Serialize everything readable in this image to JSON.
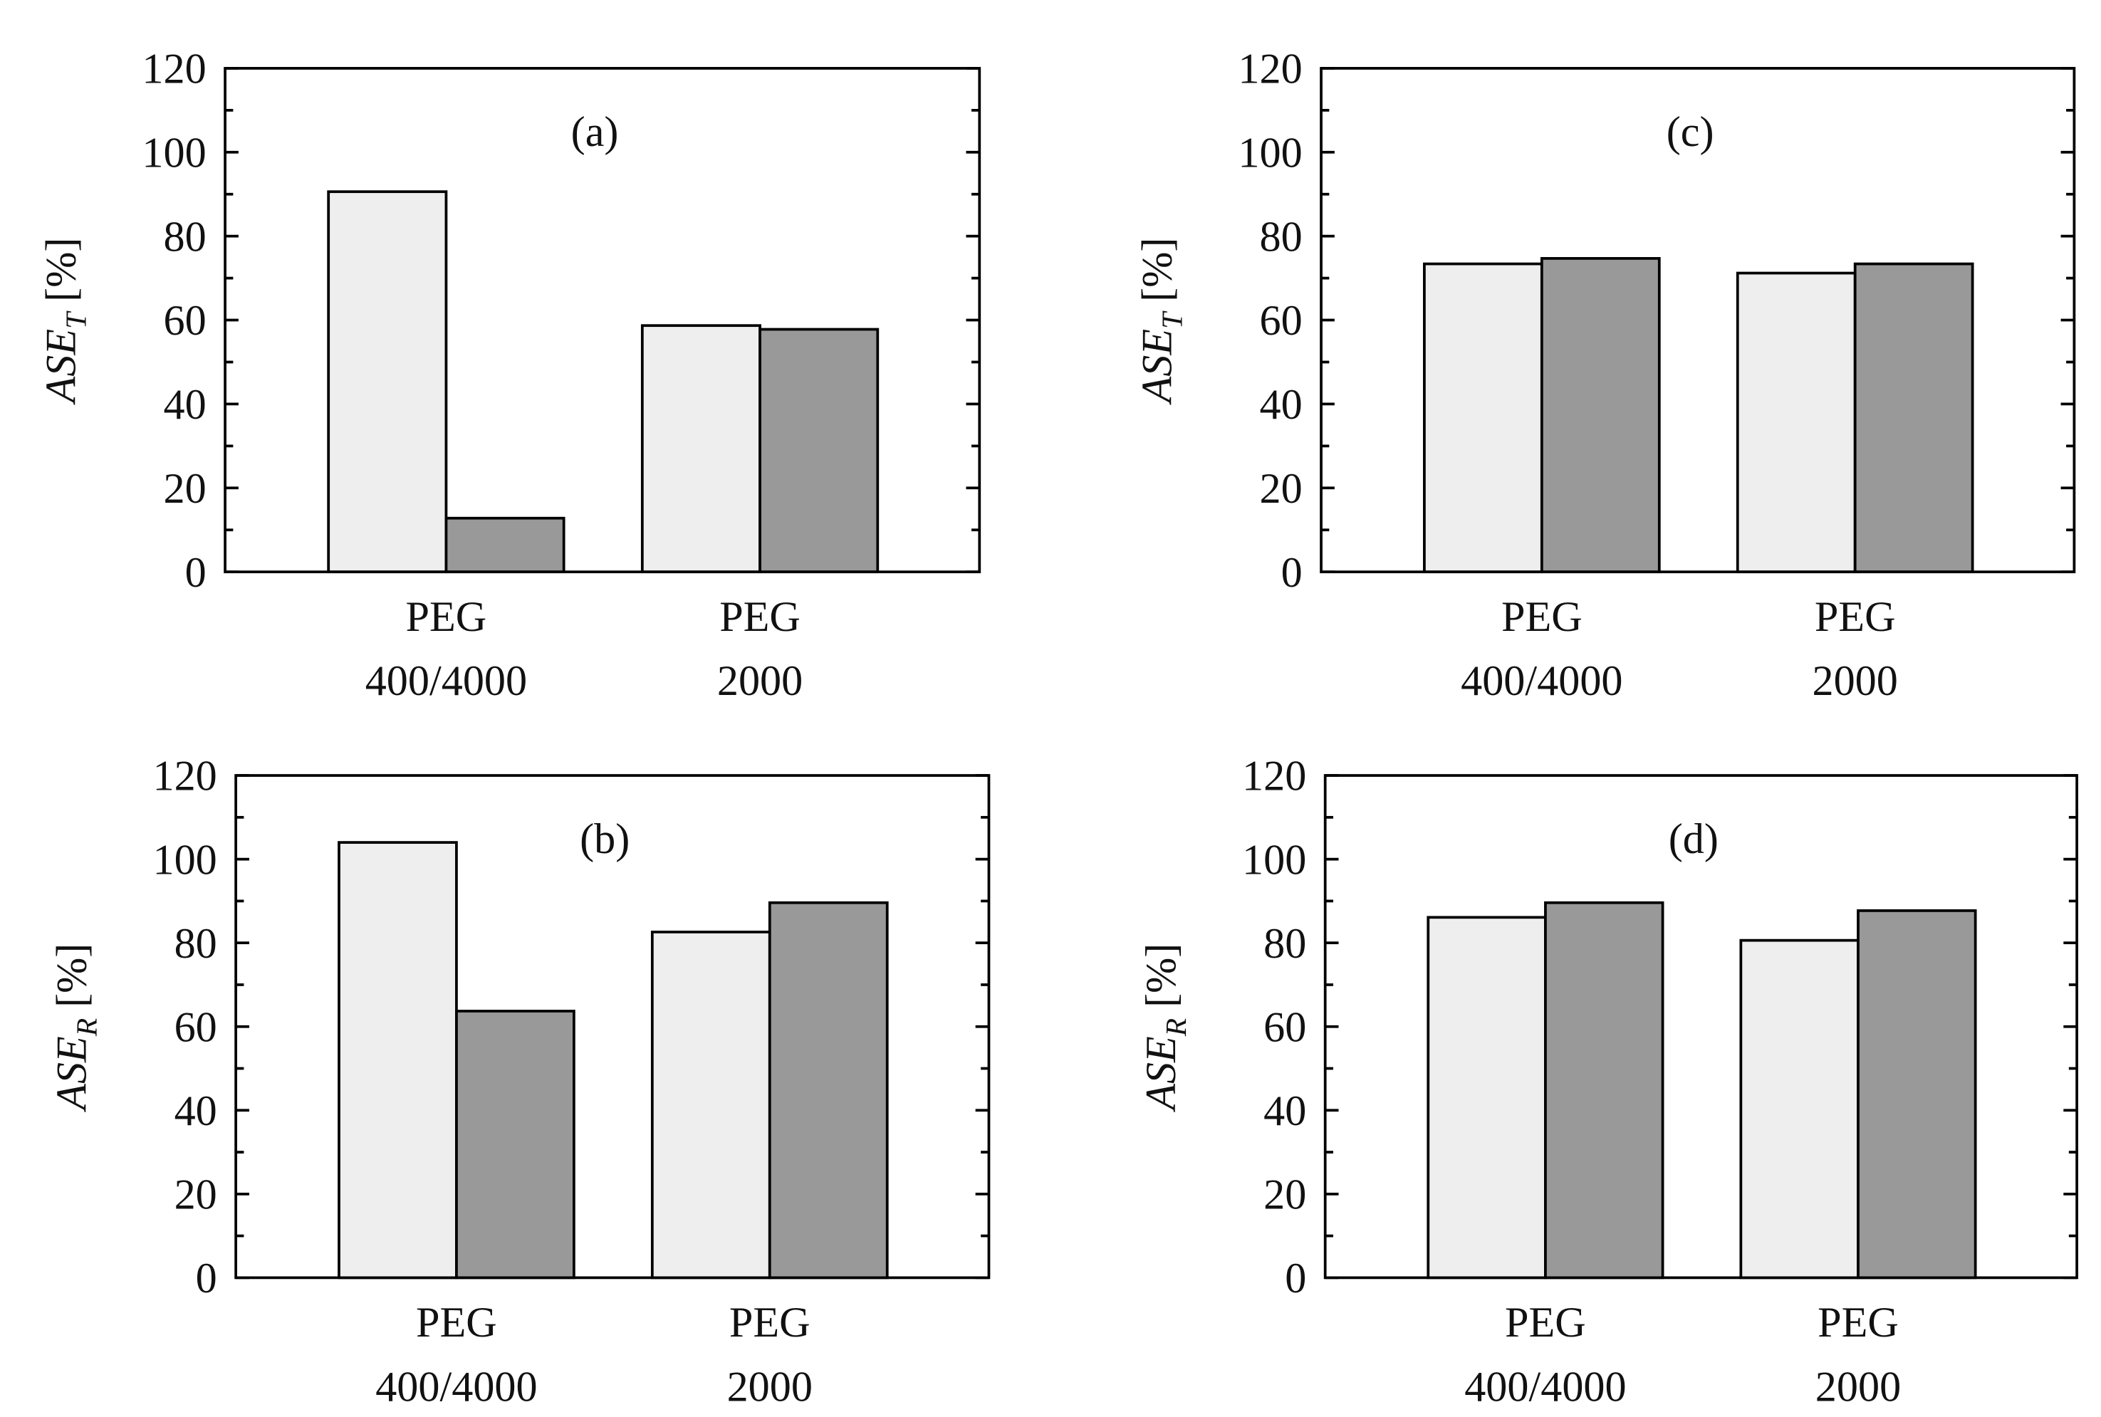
{
  "chart_data": [
    {
      "type": "bar",
      "title": "(a)",
      "ylabel": {
        "main": "ASE",
        "sub": "T",
        "unit": "[%]"
      },
      "categories": [
        [
          "PEG",
          "400/4000"
        ],
        [
          "PEG",
          "2000"
        ]
      ],
      "series": [
        {
          "color": "#eeeeee",
          "values": [
            90.6,
            58.7
          ]
        },
        {
          "color": "#999999",
          "values": [
            12.8,
            57.8
          ]
        }
      ],
      "ylim": [
        0,
        120
      ],
      "yticks": [
        0,
        20,
        40,
        60,
        80,
        100,
        120
      ],
      "yminor": [
        10,
        30,
        50,
        70,
        90,
        110
      ]
    },
    {
      "type": "bar",
      "title": "(b)",
      "ylabel": {
        "main": "ASE",
        "sub": "R",
        "unit": "[%]"
      },
      "categories": [
        [
          "PEG",
          "400/4000"
        ],
        [
          "PEG",
          "2000"
        ]
      ],
      "series": [
        {
          "color": "#eeeeee",
          "values": [
            104,
            82.6
          ]
        },
        {
          "color": "#999999",
          "values": [
            63.7,
            89.6
          ]
        }
      ],
      "ylim": [
        0,
        120
      ],
      "yticks": [
        0,
        20,
        40,
        60,
        80,
        100,
        120
      ],
      "yminor": [
        10,
        30,
        50,
        70,
        90,
        110
      ]
    },
    {
      "type": "bar",
      "title": "(c)",
      "ylabel": {
        "main": "ASE",
        "sub": "T",
        "unit": "[%]"
      },
      "categories": [
        [
          "PEG",
          "400/4000"
        ],
        [
          "PEG",
          "2000"
        ]
      ],
      "series": [
        {
          "color": "#eeeeee",
          "values": [
            73.4,
            71.2
          ]
        },
        {
          "color": "#999999",
          "values": [
            74.7,
            73.4
          ]
        }
      ],
      "ylim": [
        0,
        120
      ],
      "yticks": [
        0,
        20,
        40,
        60,
        80,
        100,
        120
      ],
      "yminor": [
        10,
        30,
        50,
        70,
        90,
        110
      ]
    },
    {
      "type": "bar",
      "title": "(d)",
      "ylabel": {
        "main": "ASE",
        "sub": "R",
        "unit": "[%]"
      },
      "categories": [
        [
          "PEG",
          "400/4000"
        ],
        [
          "PEG",
          "2000"
        ]
      ],
      "series": [
        {
          "color": "#eeeeee",
          "values": [
            86.1,
            80.6
          ]
        },
        {
          "color": "#999999",
          "values": [
            89.6,
            87.7
          ]
        }
      ],
      "ylim": [
        0,
        120
      ],
      "yticks": [
        0,
        20,
        40,
        60,
        80,
        100,
        120
      ],
      "yminor": [
        10,
        30,
        50,
        70,
        90,
        110
      ]
    }
  ]
}
